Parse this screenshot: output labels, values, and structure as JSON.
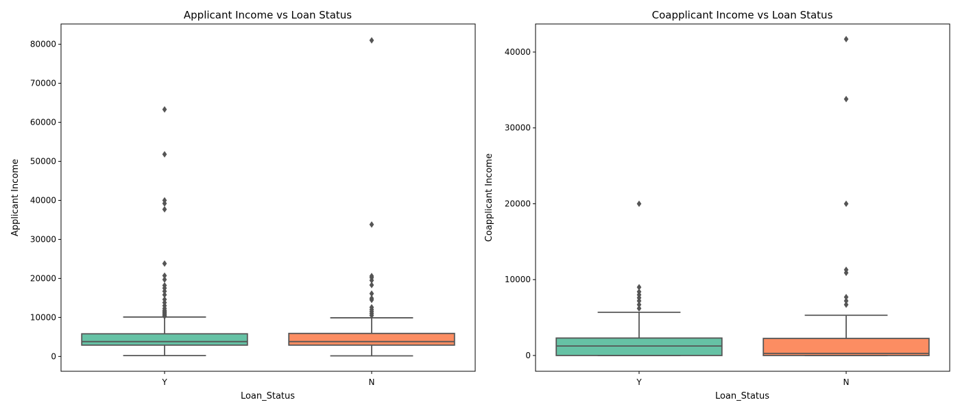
{
  "chart_data": [
    {
      "type": "box",
      "title": "Applicant Income vs Loan Status",
      "xlabel": "Loan_Status",
      "ylabel": "Applicant Income",
      "ylim": [
        -3800,
        85200
      ],
      "yticks": [
        0,
        10000,
        20000,
        30000,
        40000,
        50000,
        60000,
        70000,
        80000
      ],
      "categories": [
        "Y",
        "N"
      ],
      "boxes": [
        {
          "category": "Y",
          "color": "#66c2a5",
          "whisker_low": 210,
          "q1": 2900,
          "median": 3800,
          "q3": 5800,
          "whisker_high": 10100,
          "outliers": [
            10300,
            10600,
            10900,
            11200,
            11500,
            11800,
            12300,
            13000,
            13800,
            14600,
            15800,
            16700,
            17500,
            18200,
            19700,
            20700,
            23800,
            37700,
            39200,
            40000,
            51800,
            63300
          ]
        },
        {
          "category": "N",
          "color": "#fc8d62",
          "whisker_low": 150,
          "q1": 2900,
          "median": 3800,
          "q3": 5900,
          "whisker_high": 9900,
          "outliers": [
            10500,
            11000,
            11500,
            12000,
            12600,
            14500,
            14900,
            16100,
            18300,
            19500,
            20200,
            20600,
            33800,
            81000
          ]
        }
      ]
    },
    {
      "type": "box",
      "title": "Coapplicant Income vs Loan Status",
      "xlabel": "Loan_Status",
      "ylabel": "Coapplicant Income",
      "ylim": [
        -2080,
        43700
      ],
      "yticks": [
        0,
        10000,
        20000,
        30000,
        40000
      ],
      "categories": [
        "Y",
        "N"
      ],
      "boxes": [
        {
          "category": "Y",
          "color": "#66c2a5",
          "whisker_low": 0,
          "q1": 0,
          "median": 1250,
          "q3": 2300,
          "whisker_high": 5700,
          "outliers": [
            6200,
            6700,
            7200,
            7600,
            8000,
            8400,
            9000,
            20000
          ]
        },
        {
          "category": "N",
          "color": "#fc8d62",
          "whisker_low": 0,
          "q1": 0,
          "median": 280,
          "q3": 2250,
          "whisker_high": 5300,
          "outliers": [
            6700,
            7200,
            7700,
            10900,
            11300,
            20000,
            33800,
            41700
          ]
        }
      ]
    }
  ]
}
